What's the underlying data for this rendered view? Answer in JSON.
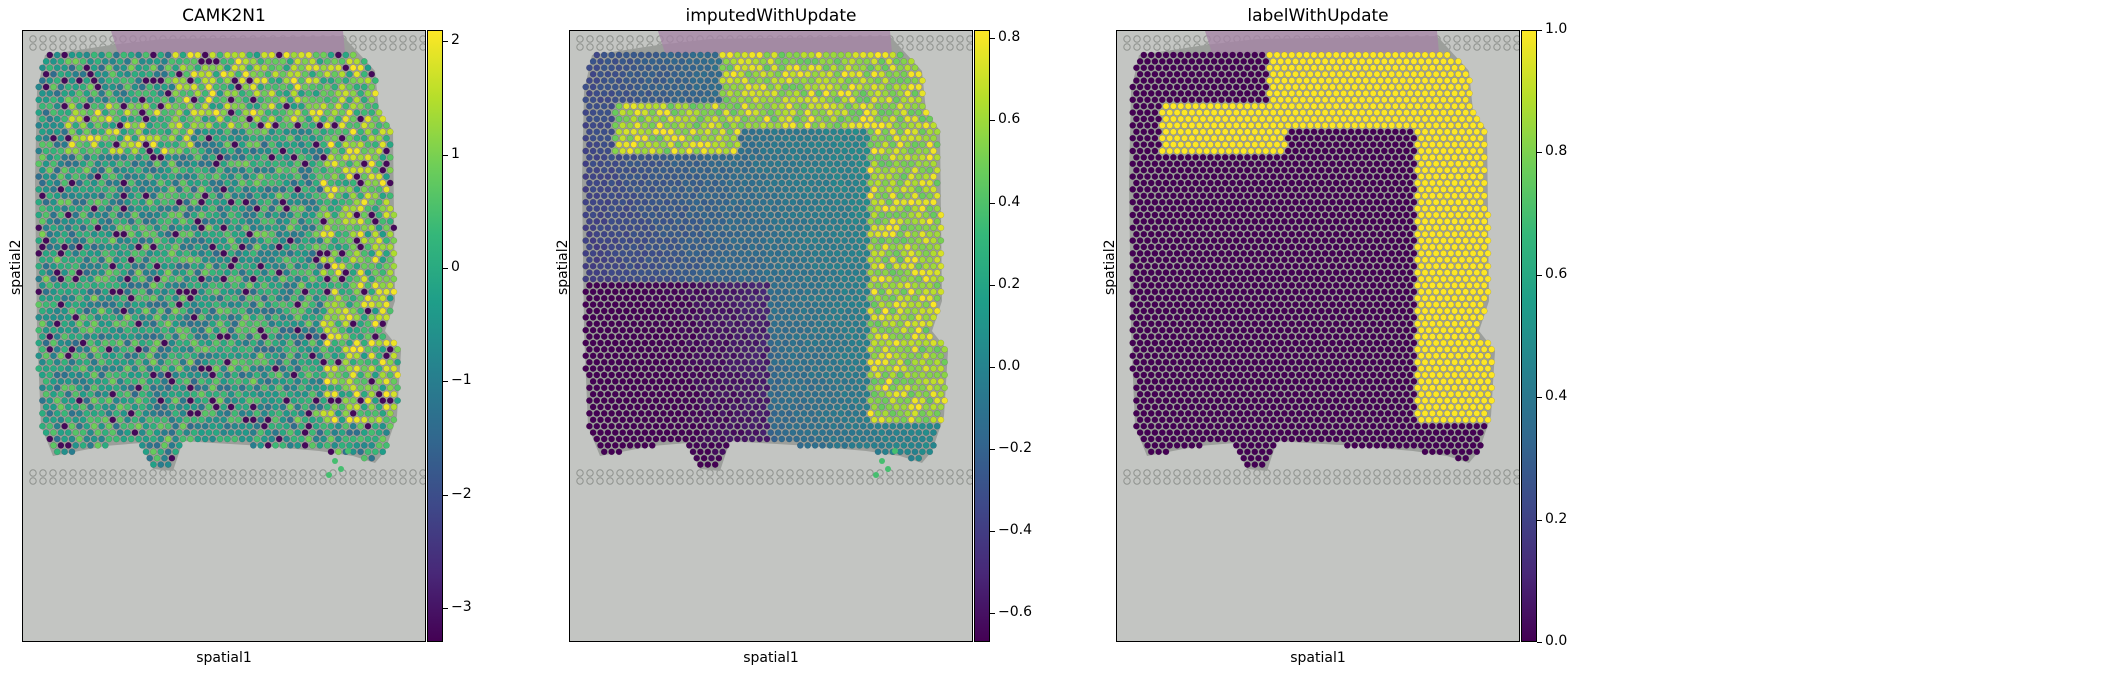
{
  "panel_defaults": {
    "xlabel": "spatial1",
    "ylabel": "spatial2"
  },
  "chart_data": [
    {
      "type": "scatter",
      "title": "CAMK2N1",
      "xlabel": "spatial1",
      "ylabel": "spatial2",
      "colormap": "viridis",
      "pattern": "noisy",
      "colorbar": {
        "min": -3.3,
        "max": 2.1,
        "ticks": [
          2,
          1,
          0,
          -1,
          -2,
          -3
        ],
        "tick_labels": [
          "2",
          "1",
          "0",
          "−1",
          "−2",
          "−3"
        ]
      }
    },
    {
      "type": "scatter",
      "title": "imputedWithUpdate",
      "xlabel": "spatial1",
      "ylabel": "spatial2",
      "colormap": "viridis",
      "pattern": "smooth",
      "colorbar": {
        "min": -0.67,
        "max": 0.82,
        "ticks": [
          0.8,
          0.6,
          0.4,
          0.2,
          0.0,
          -0.2,
          -0.4,
          -0.6
        ],
        "tick_labels": [
          "0.8",
          "0.6",
          "0.4",
          "0.2",
          "0.0",
          "−0.2",
          "−0.4",
          "−0.6"
        ]
      }
    },
    {
      "type": "scatter",
      "title": "labelWithUpdate",
      "xlabel": "spatial1",
      "ylabel": "spatial2",
      "colormap": "viridis",
      "pattern": "binary",
      "colorbar": {
        "min": 0.0,
        "max": 1.0,
        "ticks": [
          1.0,
          0.8,
          0.6,
          0.4,
          0.2,
          0.0
        ],
        "tick_labels": [
          "1.0",
          "0.8",
          "0.6",
          "0.4",
          "0.2",
          "0.0"
        ]
      }
    }
  ],
  "colors": {
    "tissue": "#9c9f9b",
    "background": "#c3c5c2",
    "fiducial": "#8f928e",
    "pink_tissue": "#a683a6",
    "viridis": [
      "#440154",
      "#482878",
      "#3e4989",
      "#31688e",
      "#26828e",
      "#1f9e89",
      "#35b779",
      "#6ece58",
      "#b5de2b",
      "#fde725"
    ]
  }
}
